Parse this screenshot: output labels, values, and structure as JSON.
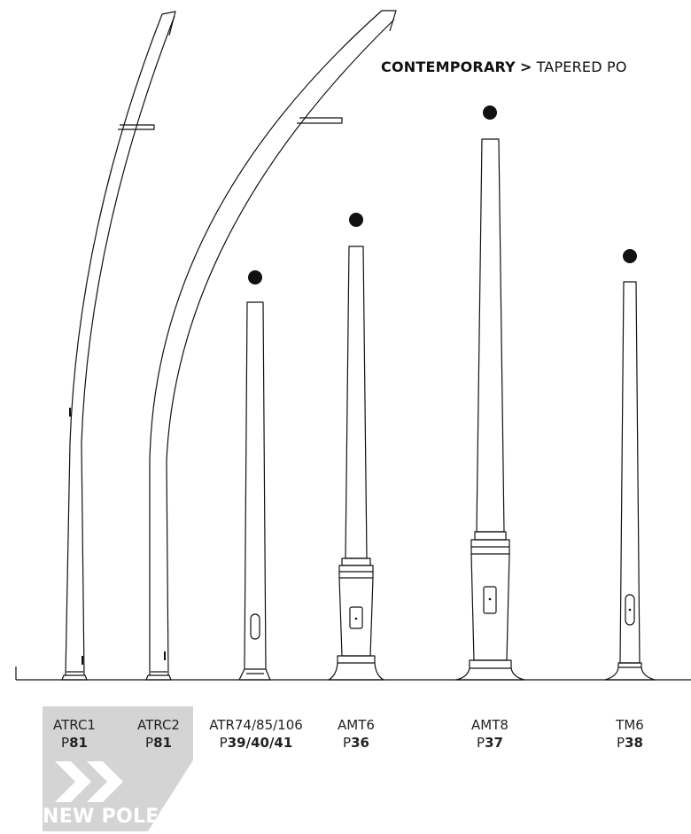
{
  "header": {
    "section": "CONTEMPORARY",
    "separator": ">",
    "subsection": "TAPERED PO"
  },
  "badge": {
    "label": "NEW POLES",
    "icon": "double-chevron-icon",
    "color": "#d4d4d4"
  },
  "poles": [
    {
      "name": "ATRC1",
      "page_prefix": "P",
      "page": "81",
      "is_new": true
    },
    {
      "name": "ATRC2",
      "page_prefix": "P",
      "page": "81",
      "is_new": true
    },
    {
      "name": "ATR74/85/106",
      "page_prefix": "P",
      "page": "39/40/41",
      "is_new": false
    },
    {
      "name": "AMT6",
      "page_prefix": "P",
      "page": "36",
      "is_new": false
    },
    {
      "name": "AMT8",
      "page_prefix": "P",
      "page": "37",
      "is_new": false
    },
    {
      "name": "TM6",
      "page_prefix": "P",
      "page": "38",
      "is_new": false
    }
  ],
  "colors": {
    "line": "#111111",
    "badge": "#d4d4d4",
    "badge_text": "#ffffff"
  }
}
